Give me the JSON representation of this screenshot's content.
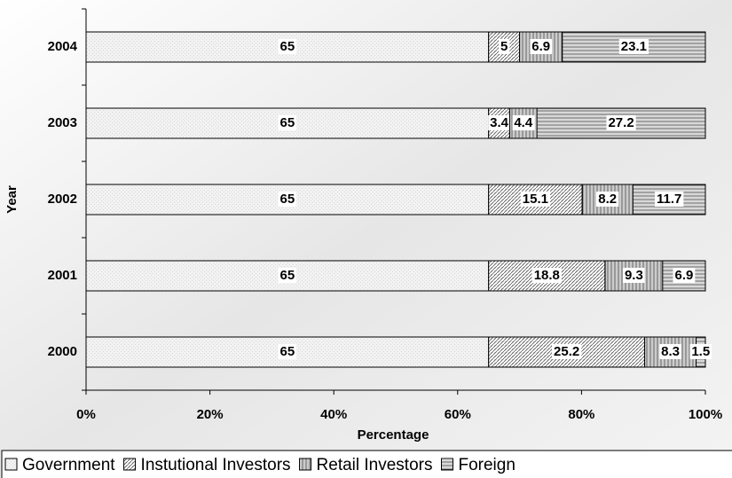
{
  "chart_data": {
    "type": "stacked-bar-horizontal",
    "x_label": "Percentage",
    "y_label": "Year",
    "categories": [
      "2004",
      "2003",
      "2002",
      "2001",
      "2000"
    ],
    "series": [
      {
        "name": "Government",
        "color": "#d8d8d8",
        "values": [
          65,
          65,
          65,
          65,
          65
        ]
      },
      {
        "name": "Instutional Investors",
        "color": "#bdbdbd",
        "values": [
          5,
          3.4,
          15.1,
          18.8,
          25.2
        ]
      },
      {
        "name": "Retail Investors",
        "color": "#9a9a9a",
        "values": [
          6.9,
          4.4,
          8.2,
          9.3,
          8.3
        ]
      },
      {
        "name": "Foreign",
        "color": "#b0b0b0",
        "values": [
          23.1,
          27.2,
          11.7,
          6.9,
          1.5
        ]
      }
    ],
    "xlim": [
      0,
      100
    ],
    "xticks": [
      {
        "value": 0,
        "label": "0%"
      },
      {
        "value": 20,
        "label": "20%"
      },
      {
        "value": 40,
        "label": "40%"
      },
      {
        "value": 60,
        "label": "60%"
      },
      {
        "value": 80,
        "label": "80%"
      },
      {
        "value": 100,
        "label": "100%"
      }
    ],
    "legend": "bottom"
  }
}
